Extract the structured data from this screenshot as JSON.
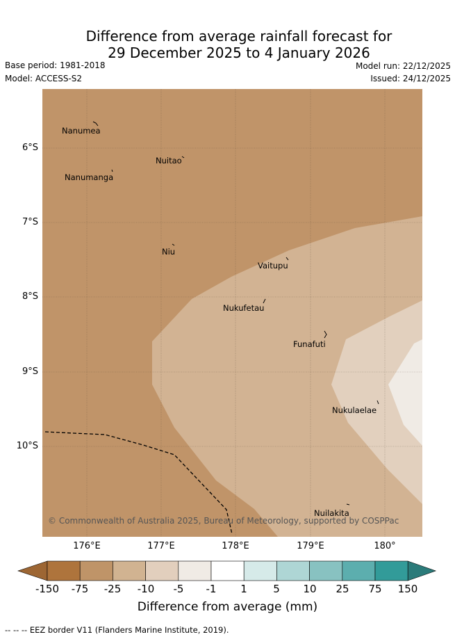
{
  "title": {
    "line1": "Difference from average rainfall forecast for",
    "line2": "29 December 2025 to 4 January 2026"
  },
  "meta": {
    "base_period": "Base period: 1981-2018",
    "model": "Model: ACCESS-S2",
    "model_run": "Model run: 22/12/2025",
    "issued": "Issued: 24/12/2025"
  },
  "axes": {
    "latitude_labels": [
      "6°S",
      "7°S",
      "8°S",
      "9°S",
      "10°S"
    ],
    "longitude_labels": [
      "176°E",
      "177°E",
      "178°E",
      "179°E",
      "180°"
    ]
  },
  "places": {
    "nanumea": "Nanumea",
    "nuitao": "Nuitao",
    "nanumanga": "Nanumanga",
    "niu": "Niu",
    "vaitupu": "Vaitupu",
    "nukufetau": "Nukufetau",
    "funafuti": "Funafuti",
    "nukulaelae": "Nukulaelae",
    "nuilakita": "Nuilakita"
  },
  "copyright": "© Commonwealth of Australia 2025, Bureau of Meteorology, supported by COSPPac",
  "colorbar": {
    "title": "Difference from average (mm)",
    "labels": [
      "-150",
      "-75",
      "-25",
      "-10",
      "-5",
      "-1",
      "1",
      "5",
      "10",
      "25",
      "75",
      "150"
    ],
    "colors": [
      "#ae743c",
      "#bf9468",
      "#d1b391",
      "#e2cfbd",
      "#f0ebe5",
      "#ffffff",
      "#d6eae9",
      "#aed6d5",
      "#88c2c1",
      "#5caeae",
      "#329b99"
    ],
    "low_extend_color": "#9d6633",
    "high_extend_color": "#2b7b7a"
  },
  "footer": "--  --  -- EEZ border V11 (Flanders Marine Institute, 2019)."
}
